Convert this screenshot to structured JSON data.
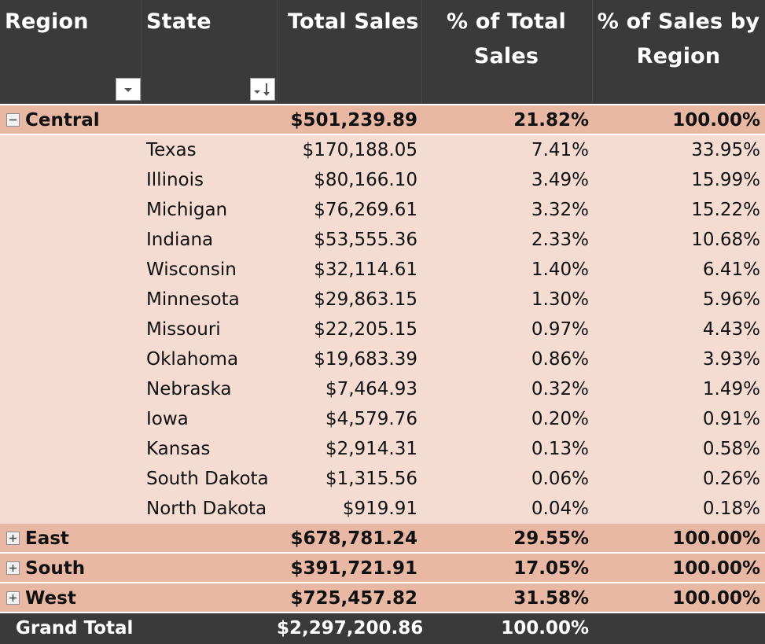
{
  "headers": {
    "region": "Region",
    "state": "State",
    "total_sales": "Total Sales",
    "pct_total_line1": "% of Total",
    "pct_total_line2": "Sales",
    "pct_region_line1": "% of Sales by",
    "pct_region_line2": "Region"
  },
  "icons": {
    "region_filter": "filter-dropdown-icon",
    "state_filter": "sort-descending-dropdown-icon",
    "collapse": "minus-box-icon",
    "expand": "plus-box-icon"
  },
  "colors": {
    "header_bg": "#3a3a3a",
    "region_row_bg": "#e9b8a4",
    "state_row_bg": "#f4dcd3",
    "header_text": "#ffffff"
  },
  "regions": [
    {
      "name": "Central",
      "expanded": true,
      "total_sales": "$501,239.89",
      "pct_total": "21.82%",
      "pct_region": "100.00%",
      "states": [
        {
          "name": "Texas",
          "total_sales": "$170,188.05",
          "pct_total": "7.41%",
          "pct_region": "33.95%"
        },
        {
          "name": "Illinois",
          "total_sales": "$80,166.10",
          "pct_total": "3.49%",
          "pct_region": "15.99%"
        },
        {
          "name": "Michigan",
          "total_sales": "$76,269.61",
          "pct_total": "3.32%",
          "pct_region": "15.22%"
        },
        {
          "name": "Indiana",
          "total_sales": "$53,555.36",
          "pct_total": "2.33%",
          "pct_region": "10.68%"
        },
        {
          "name": "Wisconsin",
          "total_sales": "$32,114.61",
          "pct_total": "1.40%",
          "pct_region": "6.41%"
        },
        {
          "name": "Minnesota",
          "total_sales": "$29,863.15",
          "pct_total": "1.30%",
          "pct_region": "5.96%"
        },
        {
          "name": "Missouri",
          "total_sales": "$22,205.15",
          "pct_total": "0.97%",
          "pct_region": "4.43%"
        },
        {
          "name": "Oklahoma",
          "total_sales": "$19,683.39",
          "pct_total": "0.86%",
          "pct_region": "3.93%"
        },
        {
          "name": "Nebraska",
          "total_sales": "$7,464.93",
          "pct_total": "0.32%",
          "pct_region": "1.49%"
        },
        {
          "name": "Iowa",
          "total_sales": "$4,579.76",
          "pct_total": "0.20%",
          "pct_region": "0.91%"
        },
        {
          "name": "Kansas",
          "total_sales": "$2,914.31",
          "pct_total": "0.13%",
          "pct_region": "0.58%"
        },
        {
          "name": "South Dakota",
          "total_sales": "$1,315.56",
          "pct_total": "0.06%",
          "pct_region": "0.26%"
        },
        {
          "name": "North Dakota",
          "total_sales": "$919.91",
          "pct_total": "0.04%",
          "pct_region": "0.18%"
        }
      ]
    },
    {
      "name": "East",
      "expanded": false,
      "total_sales": "$678,781.24",
      "pct_total": "29.55%",
      "pct_region": "100.00%",
      "states": []
    },
    {
      "name": "South",
      "expanded": false,
      "total_sales": "$391,721.91",
      "pct_total": "17.05%",
      "pct_region": "100.00%",
      "states": []
    },
    {
      "name": "West",
      "expanded": false,
      "total_sales": "$725,457.82",
      "pct_total": "31.58%",
      "pct_region": "100.00%",
      "states": []
    }
  ],
  "grand_total": {
    "label": "Grand Total",
    "total_sales": "$2,297,200.86",
    "pct_total": "100.00%"
  }
}
